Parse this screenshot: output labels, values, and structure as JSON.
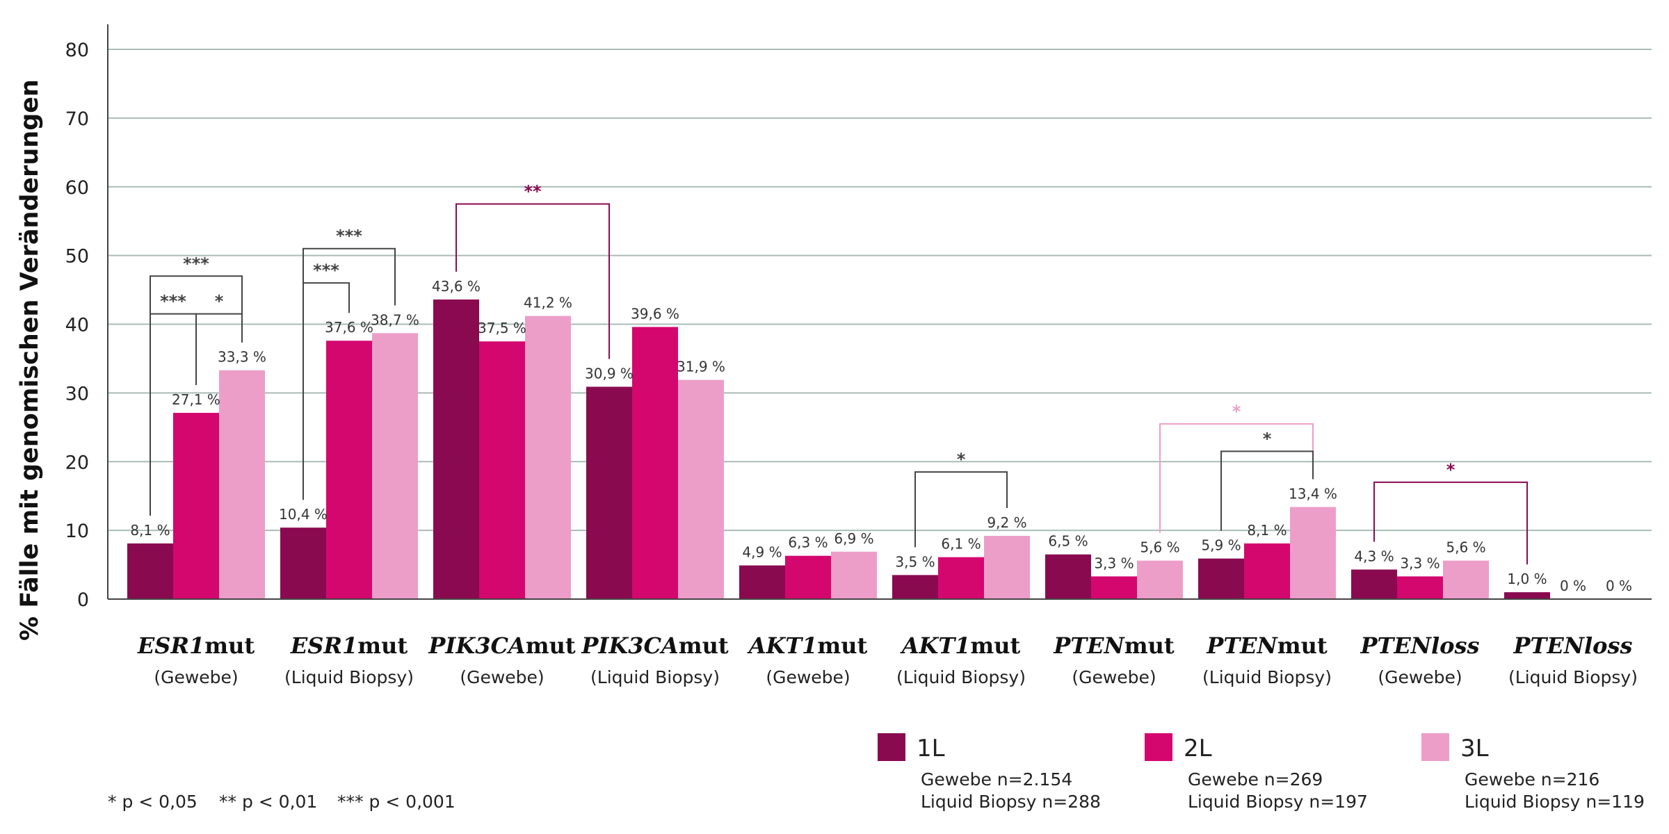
{
  "chart_data": {
    "type": "bar",
    "ylabel": "% Fälle mit genomischen Veränderungen",
    "ylim": [
      0,
      80
    ],
    "yticks": [
      "0",
      "10",
      "20",
      "30",
      "40",
      "50",
      "60",
      "70",
      "80"
    ],
    "grid": true,
    "categories": [
      {
        "gene": "ESR1",
        "suffix": "mut",
        "sub": "(Gewebe)"
      },
      {
        "gene": "ESR1",
        "suffix": "mut",
        "sub": "(Liquid Biopsy)"
      },
      {
        "gene": "PIK3CA",
        "suffix": "mut",
        "sub": "(Gewebe)"
      },
      {
        "gene": "PIK3CA",
        "suffix": "mut",
        "sub": "(Liquid Biopsy)"
      },
      {
        "gene": "AKT1",
        "suffix": "mut",
        "sub": "(Gewebe)"
      },
      {
        "gene": "AKT1",
        "suffix": "mut",
        "sub": "(Liquid Biopsy)"
      },
      {
        "gene": "PTEN",
        "suffix": "mut",
        "sub": "(Gewebe)"
      },
      {
        "gene": "PTEN",
        "suffix": "mut",
        "sub": "(Liquid Biopsy)"
      },
      {
        "gene": "PTENloss",
        "suffix": "",
        "sub": "(Gewebe)"
      },
      {
        "gene": "PTENloss",
        "suffix": "",
        "sub": "(Liquid Biopsy)"
      }
    ],
    "series": [
      {
        "name": "1L",
        "color": "#8a0a50",
        "values": [
          8.1,
          10.4,
          43.6,
          30.9,
          4.9,
          3.5,
          6.5,
          5.9,
          4.3,
          1.0
        ],
        "labels": [
          "8,1 %",
          "10,4 %",
          "43,6 %",
          "30,9 %",
          "4,9 %",
          "3,5 %",
          "6,5 %",
          "5,9 %",
          "4,3 %",
          "1,0 %"
        ]
      },
      {
        "name": "2L",
        "color": "#d4076f",
        "values": [
          27.1,
          37.6,
          37.5,
          39.6,
          6.3,
          6.1,
          3.3,
          8.1,
          3.3,
          0
        ],
        "labels": [
          "27,1 %",
          "37,6 %",
          "37,5 %",
          "39,6 %",
          "6,3 %",
          "6,1 %",
          "3,3 %",
          "8,1 %",
          "3,3 %",
          "0 %"
        ]
      },
      {
        "name": "3L",
        "color": "#ec9ec8",
        "values": [
          33.3,
          38.7,
          41.2,
          31.9,
          6.9,
          9.2,
          5.6,
          13.4,
          5.6,
          0
        ],
        "labels": [
          "33,3 %",
          "38,7 %",
          "41,2 %",
          "31,9 %",
          "6,9 %",
          "9,2 %",
          "5,6 %",
          "13,4 %",
          "5,6 %",
          "0 %"
        ]
      }
    ],
    "significance": [
      {
        "from": [
          0,
          0
        ],
        "to": [
          0,
          2
        ],
        "level": 47,
        "label": "***",
        "color": "#444444"
      },
      {
        "from": [
          0,
          0
        ],
        "to": [
          0,
          1
        ],
        "level": 41.5,
        "label": "***",
        "color": "#444444"
      },
      {
        "from": [
          0,
          1
        ],
        "to": [
          0,
          2
        ],
        "level": 41.5,
        "label": "*",
        "color": "#444444"
      },
      {
        "from": [
          1,
          0
        ],
        "to": [
          1,
          2
        ],
        "level": 51,
        "label": "***",
        "color": "#444444"
      },
      {
        "from": [
          1,
          0
        ],
        "to": [
          1,
          1
        ],
        "level": 46,
        "label": "***",
        "color": "#444444"
      },
      {
        "from": [
          2,
          0
        ],
        "to": [
          3,
          0
        ],
        "level": 57.5,
        "label": "**",
        "color": "#8a0a50"
      },
      {
        "from": [
          5,
          0
        ],
        "to": [
          5,
          2
        ],
        "level": 18.5,
        "label": "*",
        "color": "#444444"
      },
      {
        "from": [
          6,
          2
        ],
        "to": [
          7,
          2
        ],
        "level": 25.5,
        "label": "*",
        "color": "#ec9ec8"
      },
      {
        "from": [
          7,
          0
        ],
        "to": [
          7,
          2
        ],
        "level": 21.5,
        "label": "*",
        "color": "#444444"
      },
      {
        "from": [
          8,
          0
        ],
        "to": [
          9,
          0
        ],
        "level": 17,
        "label": "*",
        "color": "#8a0a50"
      }
    ],
    "legend": [
      {
        "name": "1L",
        "color": "#8a0a50",
        "note1": "Gewebe n=2.154",
        "note2": "Liquid Biopsy n=288"
      },
      {
        "name": "2L",
        "color": "#d4076f",
        "note1": "Gewebe n=269",
        "note2": "Liquid Biopsy n=197"
      },
      {
        "name": "3L",
        "color": "#ec9ec8",
        "note1": "Gewebe n=216",
        "note2": "Liquid Biopsy n=119"
      }
    ],
    "footnote": [
      "* p < 0,05",
      "** p < 0,01",
      "*** p < 0,001"
    ]
  }
}
